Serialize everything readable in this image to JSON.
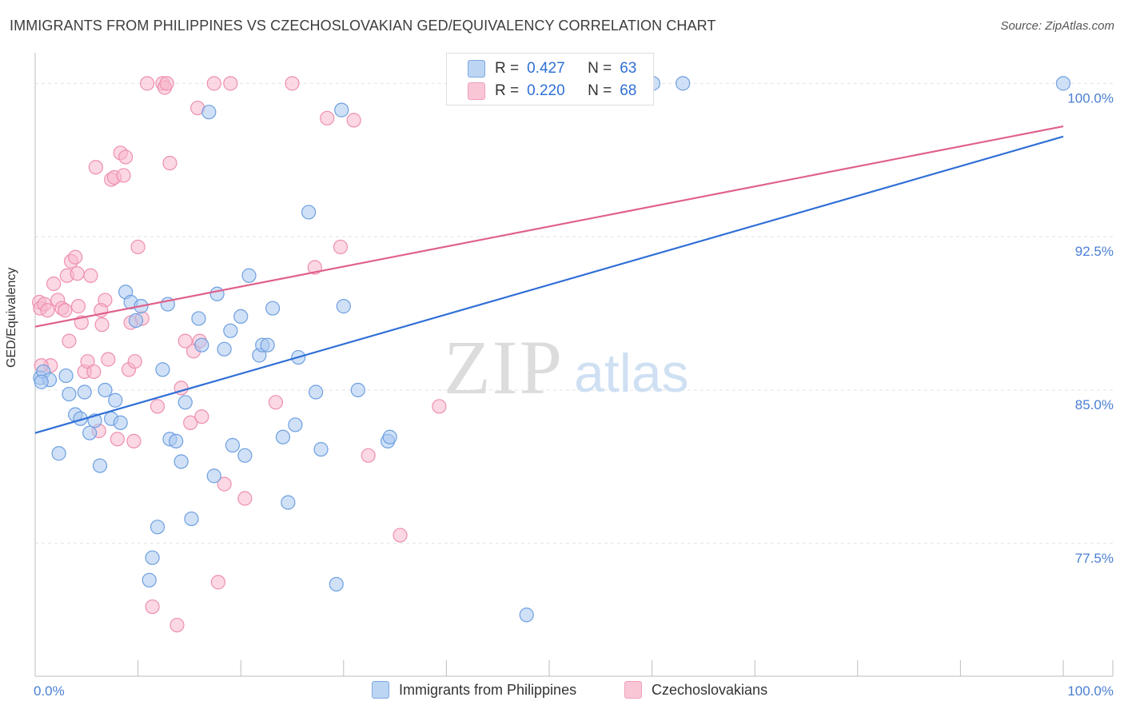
{
  "title": "IMMIGRANTS FROM PHILIPPINES VS CZECHOSLOVAKIAN GED/EQUIVALENCY CORRELATION CHART",
  "source": "Source: ZipAtlas.com",
  "watermark_zip": "ZIP",
  "watermark_atlas": "atlas",
  "colors": {
    "blue_fill": "#aac8f0",
    "blue_stroke": "#6e9fe0",
    "blue_line": "#2f6fd6",
    "pink_fill": "#f7b8cc",
    "pink_stroke": "#ee8fb0",
    "pink_line": "#e0608a",
    "grid": "#e3e3e3",
    "axis_text": "#4a7fd4"
  },
  "stats": {
    "r_label": "R =",
    "n_label": "N =",
    "blue": {
      "r": "0.427",
      "n": "63"
    },
    "pink": {
      "r": "0.220",
      "n": "68"
    }
  },
  "legend": {
    "blue": "Immigrants from Philippines",
    "pink": "Czechoslovakians"
  },
  "chart_data": {
    "type": "scatter",
    "title": "IMMIGRANTS FROM PHILIPPINES VS CZECHOSLOVAKIAN GED/EQUIVALENCY CORRELATION CHART",
    "xlabel": "",
    "ylabel": "GED/Equivalency",
    "xlim": [
      0,
      100
    ],
    "ylim": [
      71.0,
      101.5
    ],
    "x_tick_labels": [
      "0.0%",
      "100.0%"
    ],
    "y_ticks": [
      77.5,
      85.0,
      92.5,
      100.0
    ],
    "y_tick_labels": [
      "77.5%",
      "85.0%",
      "92.5%",
      "100.0%"
    ],
    "legend_position": "bottom",
    "series": [
      {
        "name": "Immigrants from Philippines",
        "color": "blue",
        "trend": {
          "x": [
            0,
            100
          ],
          "y": [
            82.9,
            97.4
          ]
        },
        "points": [
          [
            0.5,
            85.6
          ],
          [
            0.8,
            85.9
          ],
          [
            1.4,
            85.5
          ],
          [
            2.3,
            81.9
          ],
          [
            3.0,
            85.7
          ],
          [
            3.3,
            84.8
          ],
          [
            3.9,
            83.8
          ],
          [
            4.4,
            83.6
          ],
          [
            4.8,
            84.9
          ],
          [
            5.3,
            82.9
          ],
          [
            5.8,
            83.5
          ],
          [
            6.3,
            81.3
          ],
          [
            6.8,
            85.0
          ],
          [
            7.4,
            83.6
          ],
          [
            7.8,
            84.5
          ],
          [
            8.3,
            83.4
          ],
          [
            8.8,
            89.8
          ],
          [
            9.3,
            89.3
          ],
          [
            9.8,
            88.4
          ],
          [
            10.3,
            89.1
          ],
          [
            11.1,
            75.7
          ],
          [
            11.4,
            76.8
          ],
          [
            11.9,
            78.3
          ],
          [
            12.4,
            86.0
          ],
          [
            12.9,
            89.2
          ],
          [
            13.1,
            82.6
          ],
          [
            13.7,
            82.5
          ],
          [
            14.2,
            81.5
          ],
          [
            14.6,
            84.4
          ],
          [
            15.2,
            78.7
          ],
          [
            15.9,
            88.5
          ],
          [
            16.2,
            87.2
          ],
          [
            16.9,
            98.6
          ],
          [
            17.4,
            80.8
          ],
          [
            17.7,
            89.7
          ],
          [
            18.4,
            87.0
          ],
          [
            19.0,
            87.9
          ],
          [
            19.2,
            82.3
          ],
          [
            20.0,
            88.6
          ],
          [
            20.4,
            81.8
          ],
          [
            20.8,
            90.6
          ],
          [
            21.8,
            86.7
          ],
          [
            22.1,
            87.2
          ],
          [
            22.6,
            87.2
          ],
          [
            23.1,
            89.0
          ],
          [
            24.1,
            82.7
          ],
          [
            25.3,
            83.3
          ],
          [
            25.6,
            86.6
          ],
          [
            24.6,
            79.5
          ],
          [
            26.6,
            93.7
          ],
          [
            27.3,
            84.9
          ],
          [
            27.8,
            82.1
          ],
          [
            29.3,
            75.5
          ],
          [
            30.0,
            89.1
          ],
          [
            29.8,
            98.7
          ],
          [
            31.4,
            85.0
          ],
          [
            34.3,
            82.5
          ],
          [
            34.5,
            82.7
          ],
          [
            47.8,
            74.0
          ],
          [
            60.1,
            100.0
          ],
          [
            63.0,
            100.0
          ],
          [
            100.0,
            100.0
          ],
          [
            0.6,
            85.4
          ]
        ]
      },
      {
        "name": "Czechoslovakians",
        "color": "pink",
        "trend": {
          "x": [
            0,
            100
          ],
          "y": [
            88.1,
            97.9
          ]
        },
        "points": [
          [
            0.4,
            89.3
          ],
          [
            0.5,
            89.0
          ],
          [
            0.9,
            89.2
          ],
          [
            1.2,
            88.9
          ],
          [
            1.5,
            86.2
          ],
          [
            1.8,
            90.2
          ],
          [
            2.2,
            89.4
          ],
          [
            2.6,
            89.0
          ],
          [
            2.9,
            88.9
          ],
          [
            3.1,
            90.6
          ],
          [
            3.3,
            87.4
          ],
          [
            3.5,
            91.3
          ],
          [
            3.9,
            91.5
          ],
          [
            4.2,
            89.1
          ],
          [
            4.5,
            88.3
          ],
          [
            4.8,
            85.9
          ],
          [
            5.1,
            86.4
          ],
          [
            5.4,
            90.6
          ],
          [
            5.7,
            85.9
          ],
          [
            5.9,
            95.9
          ],
          [
            6.2,
            83.0
          ],
          [
            6.5,
            88.2
          ],
          [
            6.8,
            89.4
          ],
          [
            7.1,
            86.5
          ],
          [
            7.4,
            95.3
          ],
          [
            7.7,
            95.4
          ],
          [
            8.0,
            82.6
          ],
          [
            8.3,
            96.6
          ],
          [
            8.6,
            95.5
          ],
          [
            8.8,
            96.4
          ],
          [
            9.1,
            86.0
          ],
          [
            9.3,
            88.3
          ],
          [
            9.6,
            82.5
          ],
          [
            10.0,
            92.0
          ],
          [
            10.4,
            88.5
          ],
          [
            10.9,
            100.0
          ],
          [
            11.4,
            74.4
          ],
          [
            11.9,
            84.2
          ],
          [
            12.4,
            100.0
          ],
          [
            12.6,
            99.8
          ],
          [
            12.8,
            100.0
          ],
          [
            13.1,
            96.1
          ],
          [
            14.2,
            85.1
          ],
          [
            14.6,
            87.4
          ],
          [
            15.1,
            83.4
          ],
          [
            15.4,
            86.9
          ],
          [
            15.8,
            98.8
          ],
          [
            16.0,
            87.4
          ],
          [
            16.2,
            83.7
          ],
          [
            17.4,
            100.0
          ],
          [
            17.8,
            75.6
          ],
          [
            18.4,
            80.4
          ],
          [
            19.0,
            100.0
          ],
          [
            20.4,
            79.7
          ],
          [
            23.4,
            84.4
          ],
          [
            25.0,
            100.0
          ],
          [
            27.2,
            91.0
          ],
          [
            28.4,
            98.3
          ],
          [
            29.7,
            92.0
          ],
          [
            31.0,
            98.2
          ],
          [
            32.4,
            81.8
          ],
          [
            35.5,
            77.9
          ],
          [
            39.3,
            84.2
          ],
          [
            0.6,
            86.2
          ],
          [
            4.1,
            90.7
          ],
          [
            6.4,
            88.9
          ],
          [
            13.8,
            73.5
          ],
          [
            9.7,
            86.4
          ]
        ]
      }
    ]
  }
}
